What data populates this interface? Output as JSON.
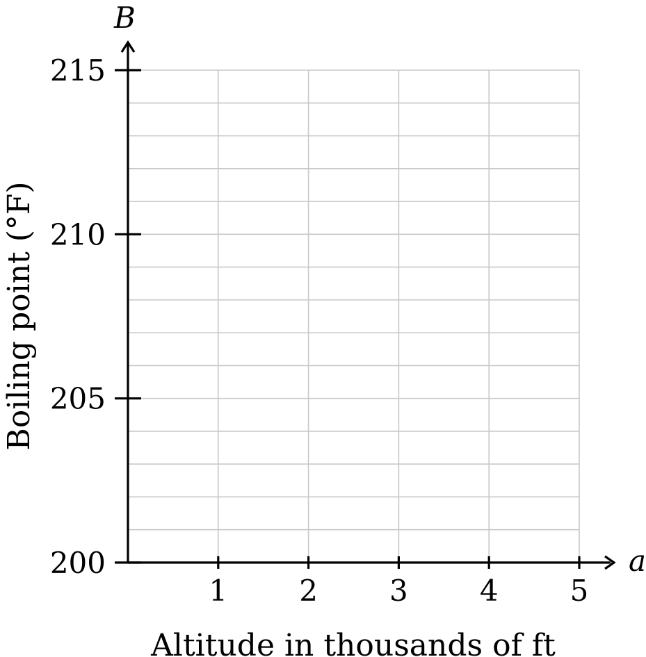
{
  "chart_data": {
    "type": "line",
    "title": "",
    "xlabel": "Altitude in thousands of ft",
    "ylabel": "Boiling point (°F)",
    "x_axis_variable": "a",
    "y_axis_variable": "B",
    "xlim": [
      0,
      5
    ],
    "ylim": [
      200,
      215
    ],
    "x_ticks": [
      1,
      2,
      3,
      4,
      5
    ],
    "y_ticks": [
      200,
      205,
      210,
      215
    ],
    "x_grid_step": 1,
    "y_grid_step": 1,
    "grid": true,
    "series": []
  }
}
